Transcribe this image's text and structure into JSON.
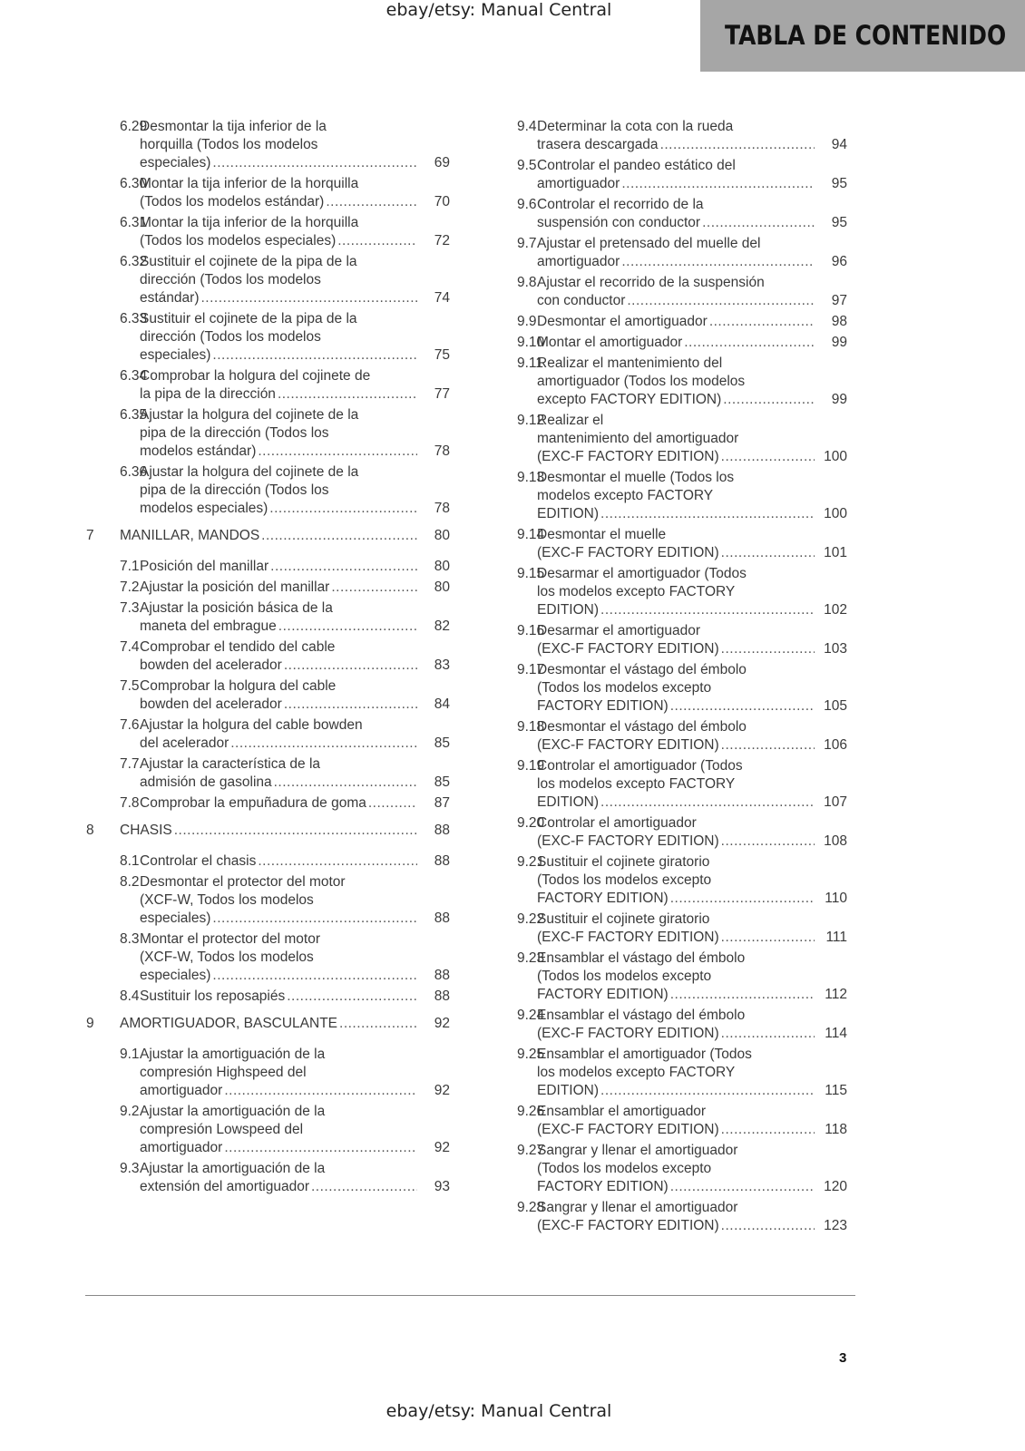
{
  "watermark": "ebay/etsy: Manual Central",
  "header_title": "TABLA DE CONTENIDO",
  "page_number": "3",
  "left": [
    {
      "num": "6.29",
      "lines": [
        "Desmontar la tija inferior de la",
        "horquilla (Todos los modelos",
        "especiales)"
      ],
      "page": "69"
    },
    {
      "num": "6.30",
      "lines": [
        "Montar la tija inferior de la horquilla",
        "(Todos los modelos estándar)"
      ],
      "page": "70"
    },
    {
      "num": "6.31",
      "lines": [
        "Montar la tija inferior de la horquilla",
        "(Todos los modelos especiales)"
      ],
      "page": "72"
    },
    {
      "num": "6.32",
      "lines": [
        "Sustituir el cojinete de la pipa de la",
        "dirección (Todos los modelos",
        "estándar)"
      ],
      "page": "74"
    },
    {
      "num": "6.33",
      "lines": [
        "Sustituir el cojinete de la pipa de la",
        "dirección (Todos los modelos",
        "especiales)"
      ],
      "page": "75"
    },
    {
      "num": "6.34",
      "lines": [
        "Comprobar la holgura del cojinete de",
        "la pipa de la dirección"
      ],
      "page": "77"
    },
    {
      "num": "6.35",
      "lines": [
        "Ajustar la holgura del cojinete de la",
        "pipa de la dirección (Todos los",
        "modelos estándar)"
      ],
      "page": "78"
    },
    {
      "num": "6.36",
      "lines": [
        "Ajustar la holgura del cojinete de la",
        "pipa de la dirección (Todos los",
        "modelos especiales)"
      ],
      "page": "78"
    },
    {
      "num": "7",
      "chapter": true,
      "lines": [
        "MANILLAR, MANDOS"
      ],
      "page": "80"
    },
    {
      "num": "7.1",
      "lines": [
        "Posición del manillar"
      ],
      "page": "80"
    },
    {
      "num": "7.2",
      "lines": [
        "Ajustar la posición del manillar"
      ],
      "page": "80"
    },
    {
      "num": "7.3",
      "lines": [
        "Ajustar la posición básica de la",
        "maneta del embrague"
      ],
      "page": "82"
    },
    {
      "num": "7.4",
      "lines": [
        "Comprobar el tendido del cable",
        "bowden del acelerador"
      ],
      "page": "83"
    },
    {
      "num": "7.5",
      "lines": [
        "Comprobar la holgura del cable",
        "bowden del acelerador"
      ],
      "page": "84"
    },
    {
      "num": "7.6",
      "lines": [
        "Ajustar la holgura del cable bowden",
        "del acelerador"
      ],
      "page": "85"
    },
    {
      "num": "7.7",
      "lines": [
        "Ajustar la característica de la",
        "admisión de gasolina"
      ],
      "page": "85"
    },
    {
      "num": "7.8",
      "lines": [
        "Comprobar la empuñadura de goma"
      ],
      "page": "87"
    },
    {
      "num": "8",
      "chapter": true,
      "lines": [
        "CHASIS"
      ],
      "page": "88"
    },
    {
      "num": "8.1",
      "lines": [
        "Controlar el chasis"
      ],
      "page": "88"
    },
    {
      "num": "8.2",
      "lines": [
        "Desmontar el protector del motor",
        "(XCF-W, Todos los modelos",
        "especiales)"
      ],
      "page": "88"
    },
    {
      "num": "8.3",
      "lines": [
        "Montar el protector del motor",
        "(XCF-W, Todos los modelos",
        "especiales)"
      ],
      "page": "88"
    },
    {
      "num": "8.4",
      "lines": [
        "Sustituir los reposapiés"
      ],
      "page": "88"
    },
    {
      "num": "9",
      "chapter": true,
      "lines": [
        "AMORTIGUADOR, BASCULANTE"
      ],
      "page": "92"
    },
    {
      "num": "9.1",
      "lines": [
        "Ajustar la amortiguación de la",
        "compresión Highspeed del",
        "amortiguador"
      ],
      "page": "92"
    },
    {
      "num": "9.2",
      "lines": [
        "Ajustar la amortiguación de la",
        "compresión Lowspeed del",
        "amortiguador"
      ],
      "page": "92"
    },
    {
      "num": "9.3",
      "lines": [
        "Ajustar la amortiguación de la",
        "extensión del amortiguador"
      ],
      "page": "93"
    }
  ],
  "right": [
    {
      "num": "9.4",
      "lines": [
        "Determinar la cota con la rueda",
        "trasera descargada"
      ],
      "page": "94"
    },
    {
      "num": "9.5",
      "lines": [
        "Controlar el pandeo estático del",
        "amortiguador"
      ],
      "page": "95"
    },
    {
      "num": "9.6",
      "lines": [
        "Controlar el recorrido de la",
        "suspensión con conductor"
      ],
      "page": "95"
    },
    {
      "num": "9.7",
      "lines": [
        "Ajustar el pretensado del muelle del",
        "amortiguador"
      ],
      "page": "96"
    },
    {
      "num": "9.8",
      "lines": [
        "Ajustar el recorrido de la suspensión",
        "con conductor"
      ],
      "page": "97"
    },
    {
      "num": "9.9",
      "lines": [
        "Desmontar el amortiguador"
      ],
      "page": "98"
    },
    {
      "num": "9.10",
      "lines": [
        "Montar el amortiguador"
      ],
      "page": "99"
    },
    {
      "num": "9.11",
      "lines": [
        "Realizar el mantenimiento del",
        "amortiguador (Todos los modelos",
        "excepto FACTORY EDITION)"
      ],
      "page": "99"
    },
    {
      "num": "9.12",
      "lines": [
        "Realizar el",
        "mantenimiento del amortiguador",
        "(EXC-F FACTORY EDITION)"
      ],
      "page": "100"
    },
    {
      "num": "9.13",
      "lines": [
        "Desmontar el muelle (Todos los",
        "modelos excepto FACTORY",
        "EDITION)"
      ],
      "page": "100"
    },
    {
      "num": "9.14",
      "lines": [
        "Desmontar el muelle",
        "(EXC-F FACTORY EDITION)"
      ],
      "page": "101"
    },
    {
      "num": "9.15",
      "lines": [
        "Desarmar el amortiguador (Todos",
        "los modelos excepto FACTORY",
        "EDITION)"
      ],
      "page": "102"
    },
    {
      "num": "9.16",
      "lines": [
        "Desarmar el amortiguador",
        "(EXC-F FACTORY EDITION)"
      ],
      "page": "103"
    },
    {
      "num": "9.17",
      "lines": [
        "Desmontar el vástago del émbolo",
        "(Todos los modelos excepto",
        "FACTORY EDITION)"
      ],
      "page": "105"
    },
    {
      "num": "9.18",
      "lines": [
        "Desmontar el vástago del émbolo",
        "(EXC-F FACTORY EDITION)"
      ],
      "page": "106"
    },
    {
      "num": "9.19",
      "lines": [
        "Controlar el amortiguador (Todos",
        "los modelos excepto FACTORY",
        "EDITION)"
      ],
      "page": "107"
    },
    {
      "num": "9.20",
      "lines": [
        "Controlar el amortiguador",
        "(EXC-F FACTORY EDITION)"
      ],
      "page": "108"
    },
    {
      "num": "9.21",
      "lines": [
        "Sustituir el cojinete giratorio",
        "(Todos los modelos excepto",
        "FACTORY EDITION)"
      ],
      "page": "110"
    },
    {
      "num": "9.22",
      "lines": [
        "Sustituir el cojinete giratorio",
        "(EXC-F FACTORY EDITION)"
      ],
      "page": "111"
    },
    {
      "num": "9.23",
      "lines": [
        "Ensamblar el vástago del émbolo",
        "(Todos los modelos excepto",
        "FACTORY EDITION)"
      ],
      "page": "112"
    },
    {
      "num": "9.24",
      "lines": [
        "Ensamblar el vástago del émbolo",
        "(EXC-F FACTORY EDITION)"
      ],
      "page": "114"
    },
    {
      "num": "9.25",
      "lines": [
        "Ensamblar el amortiguador (Todos",
        "los modelos excepto FACTORY",
        "EDITION)"
      ],
      "page": "115"
    },
    {
      "num": "9.26",
      "lines": [
        "Ensamblar el amortiguador",
        "(EXC-F FACTORY EDITION)"
      ],
      "page": "118"
    },
    {
      "num": "9.27",
      "lines": [
        "Sangrar y llenar el amortiguador",
        "(Todos los modelos excepto",
        "FACTORY EDITION)"
      ],
      "page": "120"
    },
    {
      "num": "9.28",
      "lines": [
        "Sangrar y llenar el amortiguador",
        "(EXC-F FACTORY EDITION)"
      ],
      "page": "123"
    }
  ]
}
